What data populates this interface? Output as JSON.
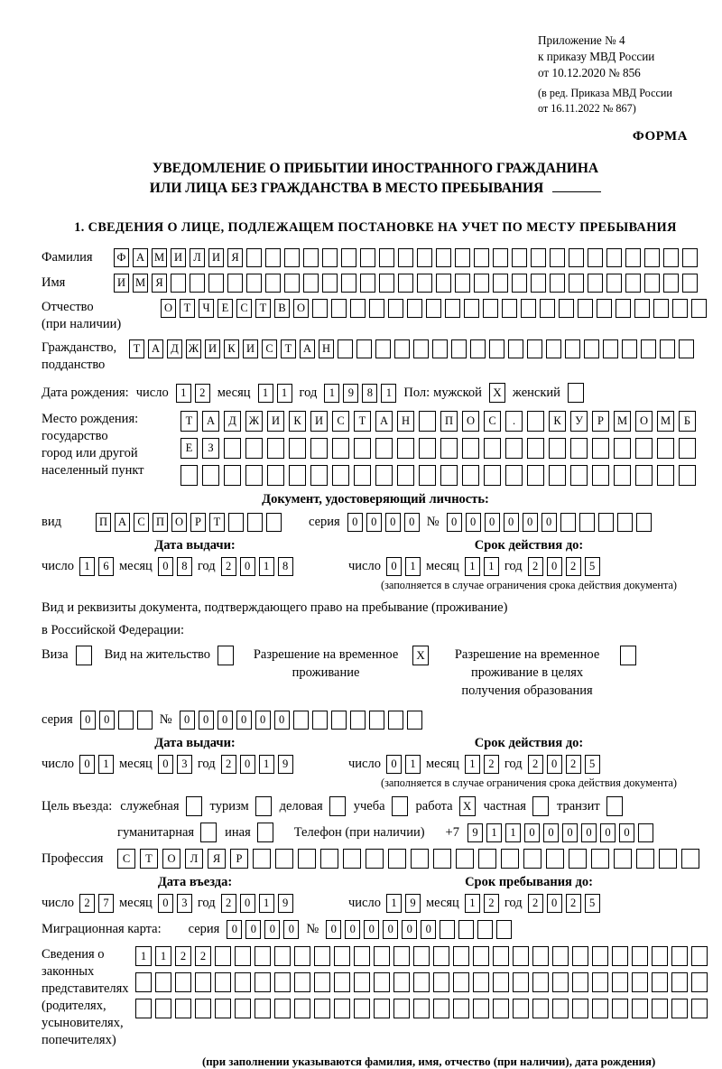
{
  "annex": {
    "lines": [
      "Приложение № 4",
      "к приказу МВД России",
      "от 10.12.2020 № 856"
    ],
    "note_lines": [
      "(в ред. Приказа МВД России",
      "от 16.11.2022 № 867)"
    ],
    "form_label": "ФОРМА"
  },
  "title": {
    "line1": "УВЕДОМЛЕНИЕ О ПРИБЫТИИ ИНОСТРАННОГО ГРАЖДАНИНА",
    "line2": "ИЛИ ЛИЦА БЕЗ ГРАЖДАНСТВА В МЕСТО ПРЕБЫВАНИЯ"
  },
  "section1": {
    "heading": "1. СВЕДЕНИЯ О ЛИЦЕ, ПОДЛЕЖАЩЕМ ПОСТАНОВКЕ НА УЧЕТ ПО МЕСТУ ПРЕБЫВАНИЯ"
  },
  "date_labels": {
    "day": "число",
    "month": "месяц",
    "year": "год"
  },
  "person": {
    "surname": {
      "label": "Фамилия",
      "boxes": {
        "count": 31,
        "chars": "ФАМИЛИЯ"
      }
    },
    "given_name": {
      "label": "Имя",
      "boxes": {
        "count": 31,
        "chars": "ИМЯ"
      }
    },
    "patronymic": {
      "label1": "Отчество",
      "label2": "(при наличии)",
      "boxes": {
        "count": 29,
        "chars": "ОТЧЕСТВО"
      }
    },
    "citizenship": {
      "label1": "Гражданство,",
      "label2": "подданство",
      "boxes": {
        "count": 30,
        "chars": "ТАДЖИКИСТАН"
      }
    },
    "birth_date": {
      "label": "Дата рождения:",
      "day": "12",
      "month": "11",
      "year": "1981"
    },
    "sex": {
      "label": "Пол:",
      "male_label": "мужской",
      "male": "X",
      "female_label": "женский",
      "female": ""
    },
    "birth_place": {
      "label_lines": [
        "Место рождения:",
        "государство",
        "город или другой",
        "населенный пункт"
      ],
      "rows": [
        {
          "count": 24,
          "chars": "ТАДЖИКИСТАН ПОС. КУРМОМБ"
        },
        {
          "count": 24,
          "chars": "ЕЗ"
        },
        {
          "count": 24,
          "chars": ""
        }
      ]
    }
  },
  "identity_doc": {
    "heading": "Документ, удостоверяющий личность:",
    "kind_label": "вид",
    "kind": {
      "count": 10,
      "chars": "ПАСПОРТ"
    },
    "series_label": "серия",
    "series": {
      "count": 4,
      "chars": "0000"
    },
    "number_label": "№",
    "number": {
      "count": 11,
      "chars": "000000"
    },
    "issue_title": "Дата выдачи:",
    "issue": {
      "day": "16",
      "month": "08",
      "year": "2018"
    },
    "valid_title": "Срок действия до:",
    "valid": {
      "day": "01",
      "month": "11",
      "year": "2025"
    },
    "valid_note": "(заполняется в случае ограничения срока действия документа)"
  },
  "residence_doc": {
    "intro1": "Вид и реквизиты документа, подтверждающего право на пребывание (проживание)",
    "intro2": "в Российской Федерации:",
    "options": [
      {
        "label": "Виза",
        "checked": ""
      },
      {
        "label": "Вид на жительство",
        "checked": ""
      },
      {
        "label": "Разрешение на временное проживание",
        "checked": "X"
      },
      {
        "label": "Разрешение на временное проживание в целях получения образования",
        "checked": ""
      }
    ],
    "series_label": "серия",
    "series": {
      "count": 4,
      "chars": "00"
    },
    "number_label": "№",
    "number": {
      "count": 13,
      "chars": "000000"
    },
    "issue_title": "Дата выдачи:",
    "issue": {
      "day": "01",
      "month": "03",
      "year": "2019"
    },
    "valid_title": "Срок действия до:",
    "valid": {
      "day": "01",
      "month": "12",
      "year": "2025"
    },
    "valid_note": "(заполняется в случае ограничения срока действия документа)"
  },
  "entry": {
    "label": "Цель въезда:",
    "options": [
      {
        "label": "служебная",
        "checked": ""
      },
      {
        "label": "туризм",
        "checked": ""
      },
      {
        "label": "деловая",
        "checked": ""
      },
      {
        "label": "учеба",
        "checked": ""
      },
      {
        "label": "работа",
        "checked": "X"
      },
      {
        "label": "частная",
        "checked": ""
      },
      {
        "label": "транзит",
        "checked": ""
      },
      {
        "label": "гуманитарная",
        "checked": ""
      },
      {
        "label": "иная",
        "checked": ""
      }
    ],
    "phone_label": "Телефон (при наличии)",
    "phone_prefix": "+7",
    "phone": {
      "count": 10,
      "chars": "911000000"
    }
  },
  "profession": {
    "label": "Профессия",
    "boxes": {
      "count": 26,
      "chars": "СТОЛЯР"
    }
  },
  "entry_dates": {
    "entry_title": "Дата въезда:",
    "entry": {
      "day": "27",
      "month": "03",
      "year": "2019"
    },
    "stay_title": "Срок пребывания до:",
    "stay": {
      "day": "19",
      "month": "12",
      "year": "2025"
    }
  },
  "migration_card": {
    "label": "Миграционная карта:",
    "series_label": "серия",
    "series": {
      "count": 4,
      "chars": "0000"
    },
    "number_label": "№",
    "number": {
      "count": 10,
      "chars": "000000"
    }
  },
  "representatives": {
    "label_lines": [
      "Сведения о",
      "законных",
      "представителях",
      "(родителях,",
      "усыновителях,",
      "попечителях)"
    ],
    "rows": [
      {
        "count": 29,
        "chars": "1122"
      },
      {
        "count": 29,
        "chars": ""
      },
      {
        "count": 29,
        "chars": ""
      }
    ],
    "note": "(при заполнении указываются фамилия, имя, отчество (при наличии), дата рождения)"
  }
}
